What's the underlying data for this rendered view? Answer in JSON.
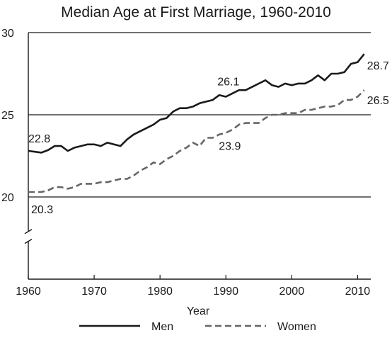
{
  "colors": {
    "men": "#1a1a1a",
    "women": "#666666",
    "axis": "#1a1a1a"
  },
  "chart_data": {
    "type": "line",
    "title": "Median Age at First Marriage, 1960-2010",
    "xlabel": "Year",
    "ylabel": "",
    "xlim": [
      1960,
      2012
    ],
    "ylim": [
      15,
      30
    ],
    "axis_break": "y-axis break below 20",
    "grid": "horizontal lines at 20, 25 and 30",
    "legend_position": "bottom",
    "x_ticks": [
      1960,
      1970,
      1980,
      1990,
      2000,
      2010
    ],
    "y_ticks": [
      20,
      25,
      30
    ],
    "x_tick_labels": [
      "1960",
      "1970",
      "1980",
      "1990",
      "2000",
      "2010"
    ],
    "y_tick_labels": [
      "20",
      "25",
      "30"
    ],
    "series": [
      {
        "name": "Men",
        "style": "solid",
        "points": [
          [
            1960,
            22.8
          ],
          [
            1961,
            22.75
          ],
          [
            1962,
            22.7
          ],
          [
            1963,
            22.85
          ],
          [
            1964,
            23.1
          ],
          [
            1965,
            23.1
          ],
          [
            1966,
            22.8
          ],
          [
            1967,
            23.0
          ],
          [
            1968,
            23.1
          ],
          [
            1969,
            23.2
          ],
          [
            1970,
            23.2
          ],
          [
            1971,
            23.1
          ],
          [
            1972,
            23.3
          ],
          [
            1973,
            23.2
          ],
          [
            1974,
            23.1
          ],
          [
            1975,
            23.5
          ],
          [
            1976,
            23.8
          ],
          [
            1977,
            24.0
          ],
          [
            1978,
            24.2
          ],
          [
            1979,
            24.4
          ],
          [
            1980,
            24.7
          ],
          [
            1981,
            24.8
          ],
          [
            1982,
            25.2
          ],
          [
            1983,
            25.4
          ],
          [
            1984,
            25.4
          ],
          [
            1985,
            25.5
          ],
          [
            1986,
            25.7
          ],
          [
            1987,
            25.8
          ],
          [
            1988,
            25.9
          ],
          [
            1989,
            26.2
          ],
          [
            1990,
            26.1
          ],
          [
            1991,
            26.3
          ],
          [
            1992,
            26.5
          ],
          [
            1993,
            26.5
          ],
          [
            1994,
            26.7
          ],
          [
            1995,
            26.9
          ],
          [
            1996,
            27.1
          ],
          [
            1997,
            26.8
          ],
          [
            1998,
            26.7
          ],
          [
            1999,
            26.9
          ],
          [
            2000,
            26.8
          ],
          [
            2001,
            26.9
          ],
          [
            2002,
            26.9
          ],
          [
            2003,
            27.1
          ],
          [
            2004,
            27.4
          ],
          [
            2005,
            27.1
          ],
          [
            2006,
            27.5
          ],
          [
            2007,
            27.5
          ],
          [
            2008,
            27.6
          ],
          [
            2009,
            28.1
          ],
          [
            2010,
            28.2
          ],
          [
            2011,
            28.7
          ]
        ]
      },
      {
        "name": "Women",
        "style": "dashed",
        "points": [
          [
            1960,
            20.3
          ],
          [
            1961,
            20.3
          ],
          [
            1962,
            20.3
          ],
          [
            1963,
            20.4
          ],
          [
            1964,
            20.6
          ],
          [
            1965,
            20.6
          ],
          [
            1966,
            20.5
          ],
          [
            1967,
            20.6
          ],
          [
            1968,
            20.8
          ],
          [
            1969,
            20.8
          ],
          [
            1970,
            20.8
          ],
          [
            1971,
            20.9
          ],
          [
            1972,
            20.9
          ],
          [
            1973,
            21.0
          ],
          [
            1974,
            21.1
          ],
          [
            1975,
            21.1
          ],
          [
            1976,
            21.3
          ],
          [
            1977,
            21.6
          ],
          [
            1978,
            21.8
          ],
          [
            1979,
            22.1
          ],
          [
            1980,
            22.0
          ],
          [
            1981,
            22.3
          ],
          [
            1982,
            22.5
          ],
          [
            1983,
            22.8
          ],
          [
            1984,
            23.0
          ],
          [
            1985,
            23.3
          ],
          [
            1986,
            23.1
          ],
          [
            1987,
            23.6
          ],
          [
            1988,
            23.6
          ],
          [
            1989,
            23.8
          ],
          [
            1990,
            23.9
          ],
          [
            1991,
            24.1
          ],
          [
            1992,
            24.4
          ],
          [
            1993,
            24.5
          ],
          [
            1994,
            24.5
          ],
          [
            1995,
            24.5
          ],
          [
            1996,
            24.8
          ],
          [
            1997,
            25.0
          ],
          [
            1998,
            25.0
          ],
          [
            1999,
            25.1
          ],
          [
            2000,
            25.1
          ],
          [
            2001,
            25.1
          ],
          [
            2002,
            25.3
          ],
          [
            2003,
            25.3
          ],
          [
            2004,
            25.4
          ],
          [
            2005,
            25.5
          ],
          [
            2006,
            25.5
          ],
          [
            2007,
            25.6
          ],
          [
            2008,
            25.9
          ],
          [
            2009,
            25.9
          ],
          [
            2010,
            26.1
          ],
          [
            2011,
            26.5
          ]
        ]
      }
    ],
    "annotations": [
      {
        "label": "22.8",
        "year": 1960,
        "value": 22.8,
        "series": "Men"
      },
      {
        "label": "26.1",
        "year": 1990,
        "value": 26.1,
        "series": "Men"
      },
      {
        "label": "28.7",
        "year": 2011,
        "value": 28.7,
        "series": "Men"
      },
      {
        "label": "20.3",
        "year": 1960,
        "value": 20.3,
        "series": "Women"
      },
      {
        "label": "23.9",
        "year": 1990,
        "value": 23.9,
        "series": "Women"
      },
      {
        "label": "26.5",
        "year": 2011,
        "value": 26.5,
        "series": "Women"
      }
    ],
    "legend": [
      {
        "label": "Men",
        "style": "solid"
      },
      {
        "label": "Women",
        "style": "dashed"
      }
    ]
  }
}
